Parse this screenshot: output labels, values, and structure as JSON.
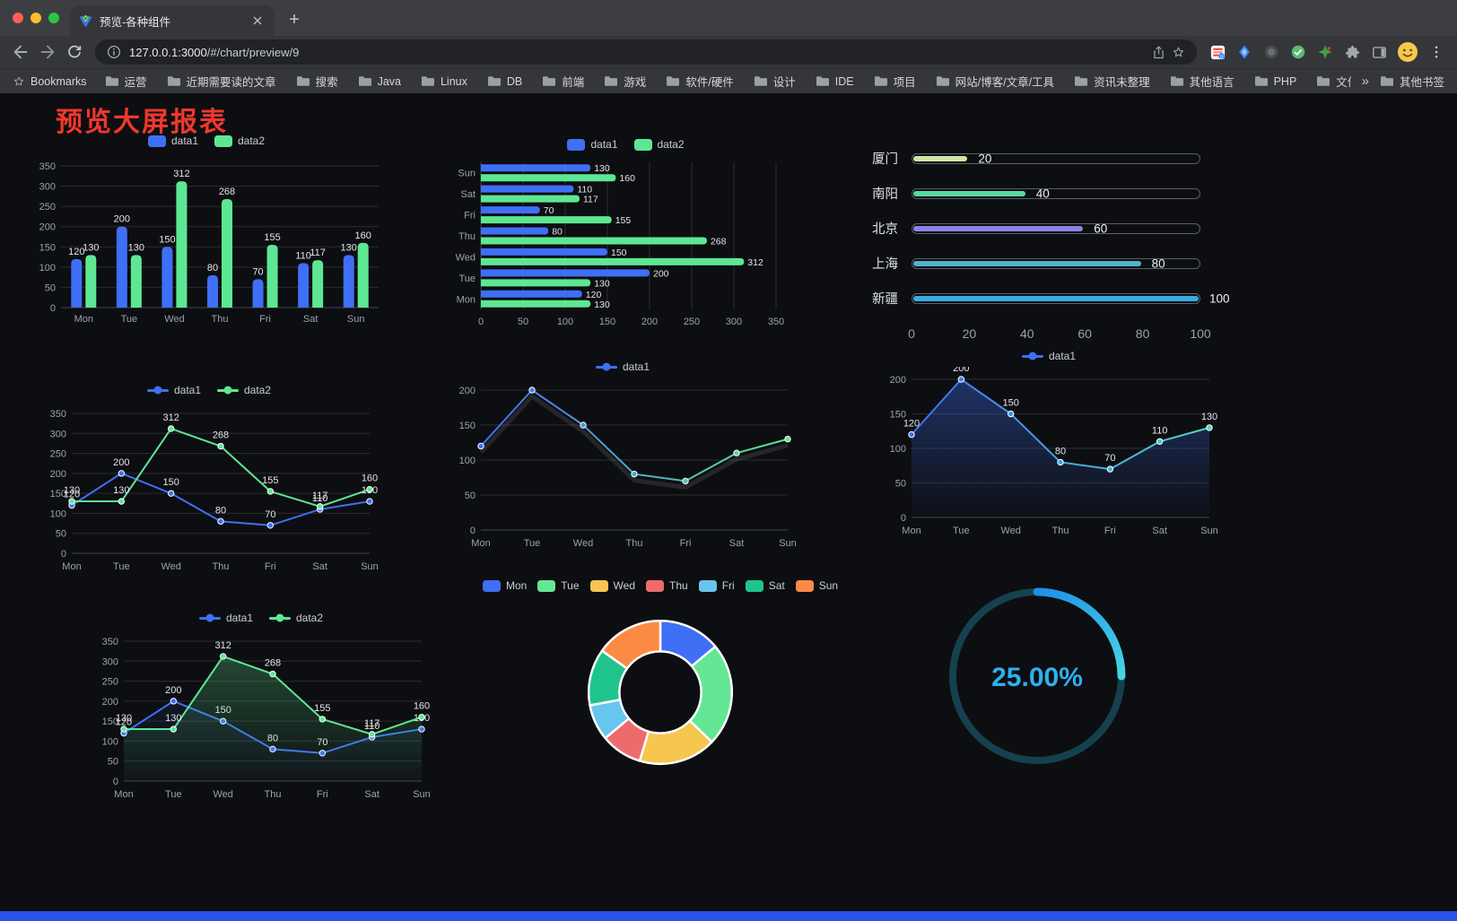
{
  "browser": {
    "tab_title": "预览-各种组件",
    "url_host": "127.0.0.1:3000",
    "url_path": "/#/chart/preview/9",
    "bookmarks_root": "Bookmarks",
    "bookmarks": [
      "运营",
      "近期需要读的文章",
      "搜索",
      "Java",
      "Linux",
      "DB",
      "前端",
      "游戏",
      "软件/硬件",
      "设计",
      "IDE",
      "项目",
      "网站/博客/文章/工具",
      "资讯未整理",
      "其他语言",
      "PHP",
      "文件服务器"
    ],
    "bookmarks_overflow": "»",
    "other_bookmarks": "其他书签"
  },
  "page": {
    "title": "预览大屏报表"
  },
  "chart_data": [
    {
      "id": "bar-grouped",
      "type": "bar",
      "categories": [
        "Mon",
        "Tue",
        "Wed",
        "Thu",
        "Fri",
        "Sat",
        "Sun"
      ],
      "series": [
        {
          "name": "data1",
          "color": "#3f6ff4",
          "values": [
            120,
            200,
            150,
            80,
            70,
            110,
            130
          ]
        },
        {
          "name": "data2",
          "color": "#5ee793",
          "values": [
            130,
            130,
            312,
            268,
            155,
            117,
            160
          ]
        }
      ],
      "ylim": [
        0,
        350
      ],
      "yticks": [
        0,
        50,
        100,
        150,
        200,
        250,
        300,
        350
      ],
      "legend": true,
      "marker": "rect",
      "value_labels": true
    },
    {
      "id": "hbar-grouped",
      "type": "hbar",
      "categories": [
        "Mon",
        "Tue",
        "Wed",
        "Thu",
        "Fri",
        "Sat",
        "Sun"
      ],
      "series": [
        {
          "name": "data1",
          "color": "#3f6ff4",
          "values": [
            120,
            200,
            150,
            80,
            70,
            110,
            130
          ]
        },
        {
          "name": "data2",
          "color": "#5ee793",
          "values": [
            130,
            130,
            312,
            268,
            155,
            117,
            160
          ]
        }
      ],
      "xlim": [
        0,
        350
      ],
      "xticks": [
        0,
        50,
        100,
        150,
        200,
        250,
        300,
        350
      ],
      "legend": true,
      "marker": "rect",
      "value_labels": true
    },
    {
      "id": "progress-bars",
      "type": "progress",
      "rows": [
        {
          "label": "厦门",
          "value": 20,
          "color": "#cfe7a4"
        },
        {
          "label": "南阳",
          "value": 40,
          "color": "#5ad8a2"
        },
        {
          "label": "北京",
          "value": 60,
          "color": "#8a84e8"
        },
        {
          "label": "上海",
          "value": 80,
          "color": "#55b0cd"
        },
        {
          "label": "新疆",
          "value": 100,
          "color": "#38abe4"
        }
      ],
      "xlim": [
        0,
        100
      ],
      "xticks": [
        0,
        20,
        40,
        60,
        80,
        100
      ]
    },
    {
      "id": "line-dual",
      "type": "line",
      "categories": [
        "Mon",
        "Tue",
        "Wed",
        "Thu",
        "Fri",
        "Sat",
        "Sun"
      ],
      "series": [
        {
          "name": "data1",
          "color": "#3f6ff4",
          "values": [
            120,
            200,
            150,
            80,
            70,
            110,
            130
          ]
        },
        {
          "name": "data2",
          "color": "#5ee793",
          "values": [
            130,
            130,
            312,
            268,
            155,
            117,
            160
          ]
        }
      ],
      "ylim": [
        0,
        350
      ],
      "yticks": [
        0,
        50,
        100,
        150,
        200,
        250,
        300,
        350
      ],
      "legend": true,
      "marker": "line",
      "value_labels": true
    },
    {
      "id": "line-single",
      "type": "line",
      "categories": [
        "Mon",
        "Tue",
        "Wed",
        "Thu",
        "Fri",
        "Sat",
        "Sun"
      ],
      "series": [
        {
          "name": "data1",
          "color": [
            "#3f6ff4",
            "#5ee793"
          ],
          "values": [
            120,
            200,
            150,
            80,
            70,
            110,
            130
          ]
        }
      ],
      "ylim": [
        0,
        200
      ],
      "yticks": [
        0,
        50,
        100,
        150,
        200
      ],
      "legend": true,
      "marker": "line",
      "value_labels": false,
      "shadow": true
    },
    {
      "id": "area-single",
      "type": "line",
      "categories": [
        "Mon",
        "Tue",
        "Wed",
        "Thu",
        "Fri",
        "Sat",
        "Sun"
      ],
      "series": [
        {
          "name": "data1",
          "color": [
            "#3f6ff4",
            "#4fd8c8"
          ],
          "values": [
            120,
            200,
            150,
            80,
            70,
            110,
            130
          ],
          "area": true,
          "area_opacity": 0.38
        }
      ],
      "ylim": [
        0,
        200
      ],
      "yticks": [
        0,
        50,
        100,
        150,
        200
      ],
      "legend": true,
      "marker": "line",
      "value_labels": true
    },
    {
      "id": "area-dual",
      "type": "line",
      "categories": [
        "Mon",
        "Tue",
        "Wed",
        "Thu",
        "Fri",
        "Sat",
        "Sun"
      ],
      "series": [
        {
          "name": "data1",
          "color": "#3f6ff4",
          "values": [
            120,
            200,
            150,
            80,
            70,
            110,
            130
          ],
          "area": true,
          "area_opacity": 0.14
        },
        {
          "name": "data2",
          "color": "#5ee793",
          "values": [
            130,
            130,
            312,
            268,
            155,
            117,
            160
          ],
          "area": true,
          "area_opacity": 0.3
        }
      ],
      "ylim": [
        0,
        350
      ],
      "yticks": [
        0,
        50,
        100,
        150,
        200,
        250,
        300,
        350
      ],
      "legend": true,
      "marker": "line",
      "value_labels": true
    },
    {
      "id": "donut",
      "type": "pie",
      "labels": [
        "Mon",
        "Tue",
        "Wed",
        "Thu",
        "Fri",
        "Sat",
        "Sun"
      ],
      "values": [
        120,
        200,
        150,
        80,
        70,
        110,
        130
      ],
      "colors": [
        "#3f6ff4",
        "#63e795",
        "#f6c64f",
        "#ee6b6b",
        "#67c6ee",
        "#1fc48d",
        "#fb8b44"
      ],
      "legend": true,
      "marker": "rect"
    },
    {
      "id": "gauge",
      "type": "gauge",
      "value": 25,
      "display": "25.00%",
      "arc_colors": [
        "#1f8fe8",
        "#45d4e6"
      ],
      "track_color": "#15414e",
      "text_color": "#2fb0ee"
    }
  ]
}
